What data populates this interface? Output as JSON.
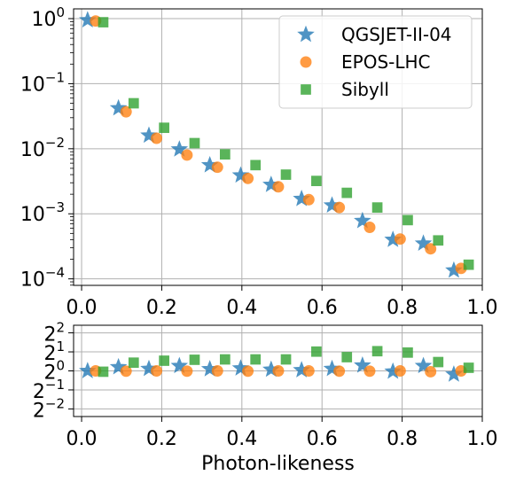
{
  "chart_data": [
    {
      "type": "scatter",
      "panel": "main",
      "yscale": "log",
      "xlim": [
        -0.02,
        1.0
      ],
      "ylim_log10": [
        -4.1,
        0.15
      ],
      "grid": true,
      "legend_placement": "top-right",
      "xlabel": "",
      "ylabel": "",
      "xticks": [
        {
          "value": 0.0,
          "label": "0.0"
        },
        {
          "value": 0.2,
          "label": "0.2"
        },
        {
          "value": 0.4,
          "label": "0.4"
        },
        {
          "value": 0.6,
          "label": "0.6"
        },
        {
          "value": 0.8,
          "label": "0.8"
        },
        {
          "value": 1.0,
          "label": "1.0"
        }
      ],
      "yticks": [
        {
          "log10": 0,
          "base": "10",
          "exp": "0"
        },
        {
          "log10": -1,
          "base": "10",
          "exp": "−1"
        },
        {
          "log10": -2,
          "base": "10",
          "exp": "−2"
        },
        {
          "log10": -3,
          "base": "10",
          "exp": "−3"
        },
        {
          "log10": -4,
          "base": "10",
          "exp": "−4"
        }
      ],
      "series": [
        {
          "name": "QGSJET-II-04",
          "marker": "star",
          "color": "#1f77b4",
          "x": [
            0.015,
            0.092,
            0.168,
            0.244,
            0.32,
            0.397,
            0.473,
            0.549,
            0.625,
            0.701,
            0.777,
            0.853,
            0.929
          ],
          "y": [
            0.95,
            0.042,
            0.016,
            0.0098,
            0.0056,
            0.0039,
            0.0028,
            0.0017,
            0.00135,
            0.00078,
            0.0004,
            0.00035,
            0.000135
          ]
        },
        {
          "name": "EPOS-LHC",
          "marker": "circle",
          "color": "#ff7f0e",
          "x": [
            0.035,
            0.111,
            0.187,
            0.263,
            0.339,
            0.415,
            0.491,
            0.567,
            0.643,
            0.719,
            0.795,
            0.871,
            0.947
          ],
          "y": [
            0.92,
            0.037,
            0.0145,
            0.008,
            0.0052,
            0.0035,
            0.0026,
            0.00165,
            0.00125,
            0.00062,
            0.00041,
            0.00029,
            0.000145
          ]
        },
        {
          "name": "Sibyll",
          "marker": "square",
          "color": "#2ca02c",
          "x": [
            0.054,
            0.13,
            0.206,
            0.282,
            0.358,
            0.434,
            0.51,
            0.586,
            0.662,
            0.738,
            0.814,
            0.89,
            0.966
          ],
          "y": [
            0.88,
            0.05,
            0.021,
            0.0122,
            0.0082,
            0.0056,
            0.004,
            0.0032,
            0.0021,
            0.00125,
            0.0008,
            0.00039,
            0.000165
          ]
        }
      ]
    },
    {
      "type": "scatter",
      "panel": "ratio",
      "yscale": "log2",
      "xlim": [
        -0.02,
        1.0
      ],
      "ylim_log2": [
        -2.4,
        2.4
      ],
      "grid": true,
      "xlabel": "Photon-likeness",
      "ylabel": "",
      "xticks": [
        {
          "value": 0.0,
          "label": "0.0"
        },
        {
          "value": 0.2,
          "label": "0.2"
        },
        {
          "value": 0.4,
          "label": "0.4"
        },
        {
          "value": 0.6,
          "label": "0.6"
        },
        {
          "value": 0.8,
          "label": "0.8"
        },
        {
          "value": 1.0,
          "label": "1.0"
        }
      ],
      "yticks": [
        {
          "log2": 2,
          "base": "2",
          "exp": "2"
        },
        {
          "log2": 1,
          "base": "2",
          "exp": "1"
        },
        {
          "log2": 0,
          "base": "2",
          "exp": "0"
        },
        {
          "log2": -1,
          "base": "2",
          "exp": "−1"
        },
        {
          "log2": -2,
          "base": "2",
          "exp": "−2"
        }
      ],
      "series": [
        {
          "name": "QGSJET-II-04",
          "marker": "star",
          "color": "#1f77b4",
          "x": [
            0.015,
            0.092,
            0.168,
            0.244,
            0.32,
            0.397,
            0.473,
            0.549,
            0.625,
            0.701,
            0.777,
            0.853,
            0.929
          ],
          "y": [
            1.0,
            1.15,
            1.08,
            1.2,
            1.07,
            1.1,
            1.05,
            1.03,
            1.08,
            1.22,
            0.98,
            1.2,
            0.88
          ]
        },
        {
          "name": "EPOS-LHC",
          "marker": "circle",
          "color": "#ff7f0e",
          "x": [
            0.035,
            0.111,
            0.187,
            0.263,
            0.339,
            0.415,
            0.491,
            0.567,
            0.643,
            0.719,
            0.795,
            0.871,
            0.947
          ],
          "y": [
            1.0,
            0.99,
            1.0,
            0.99,
            1.0,
            0.99,
            1.0,
            1.0,
            0.99,
            0.99,
            1.0,
            0.97,
            1.0
          ]
        },
        {
          "name": "Sibyll",
          "marker": "square",
          "color": "#2ca02c",
          "x": [
            0.054,
            0.13,
            0.206,
            0.282,
            0.358,
            0.434,
            0.51,
            0.586,
            0.662,
            0.738,
            0.814,
            0.89,
            0.966
          ],
          "y": [
            0.97,
            1.35,
            1.45,
            1.5,
            1.52,
            1.52,
            1.52,
            2.02,
            1.65,
            2.05,
            1.95,
            1.38,
            1.12
          ]
        }
      ]
    }
  ]
}
